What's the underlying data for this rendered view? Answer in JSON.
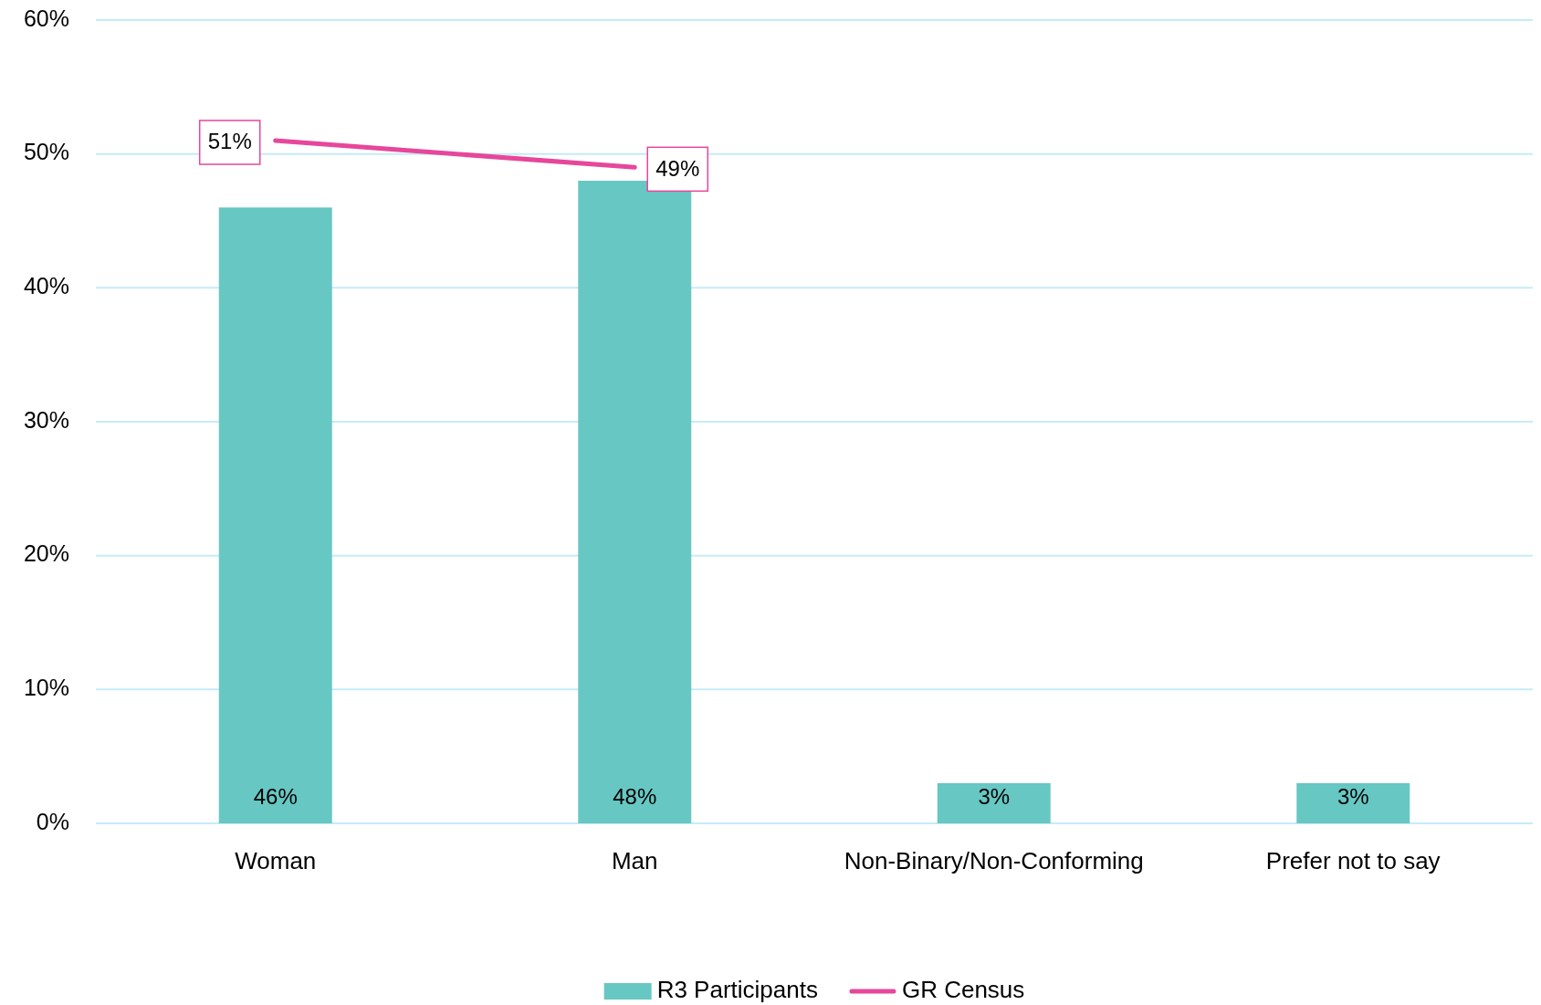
{
  "chart_data": {
    "type": "bar",
    "categories": [
      "Woman",
      "Man",
      "Non-Binary/Non-Conforming",
      "Prefer not to say"
    ],
    "series": [
      {
        "name": "R3 Participants",
        "color": "#67c7c3",
        "values": [
          46,
          48,
          3,
          3
        ],
        "value_labels": [
          "46%",
          "48%",
          "3%",
          "3%"
        ]
      },
      {
        "name": "GR Census",
        "type": "line",
        "color": "#e6479b",
        "values": [
          51,
          49,
          null,
          null
        ],
        "value_labels": [
          "51%",
          "49%",
          null,
          null
        ]
      }
    ],
    "ylim": [
      0,
      60
    ],
    "yticks": [
      {
        "value": 0,
        "label": "0%"
      },
      {
        "value": 10,
        "label": "10%"
      },
      {
        "value": 20,
        "label": "20%"
      },
      {
        "value": 30,
        "label": "30%"
      },
      {
        "value": 40,
        "label": "40%"
      },
      {
        "value": 50,
        "label": "50%"
      },
      {
        "value": 60,
        "label": "60%"
      }
    ],
    "grid": "y",
    "legend": "bottom"
  }
}
